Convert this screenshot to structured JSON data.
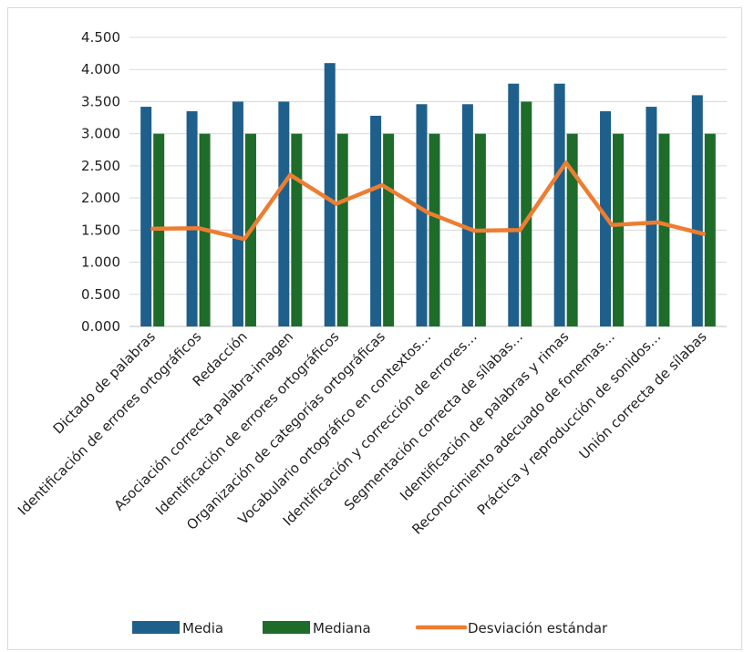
{
  "chart_data": {
    "type": "bar",
    "title": "",
    "xlabel": "",
    "ylabel": "",
    "ylim": [
      0,
      4.5
    ],
    "y_ticks": [
      "0.000",
      "0.500",
      "1.000",
      "1.500",
      "2.000",
      "2.500",
      "3.000",
      "3.500",
      "4.000",
      "4.500"
    ],
    "grid": "horizontal",
    "legend_position": "bottom",
    "categories": [
      "Dictado de palabras",
      "Identificación de errores ortográficos",
      "Redacción",
      "Asociación correcta palabra-imagen",
      "Identificación de errores ortográficos",
      "Organización de categorías ortográficas",
      "Vocabulario ortográfico en contextos…",
      "Identificación y corrección de errores…",
      "Segmentación correcta de sílabas…",
      "Identificación de palabras y rimas",
      "Reconocimiento adecuado de fonemas…",
      "Práctica y reproducción de sonidos…",
      "Unión correcta de sílabas"
    ],
    "series": [
      {
        "name": "Media",
        "type": "bar",
        "color": "#1f5f8b",
        "values": [
          3.42,
          3.35,
          3.5,
          3.5,
          4.1,
          3.28,
          3.46,
          3.46,
          3.78,
          3.78,
          3.35,
          3.42,
          3.6
        ]
      },
      {
        "name": "Mediana",
        "type": "bar",
        "color": "#1e6b2a",
        "values": [
          3.0,
          3.0,
          3.0,
          3.0,
          3.0,
          3.0,
          3.0,
          3.0,
          3.5,
          3.0,
          3.0,
          3.0,
          3.0
        ]
      },
      {
        "name": "Desviación estándar",
        "type": "line",
        "color": "#ed7d31",
        "values": [
          1.52,
          1.53,
          1.36,
          2.36,
          1.91,
          2.2,
          1.77,
          1.49,
          1.5,
          2.55,
          1.58,
          1.62,
          1.44
        ]
      }
    ]
  }
}
